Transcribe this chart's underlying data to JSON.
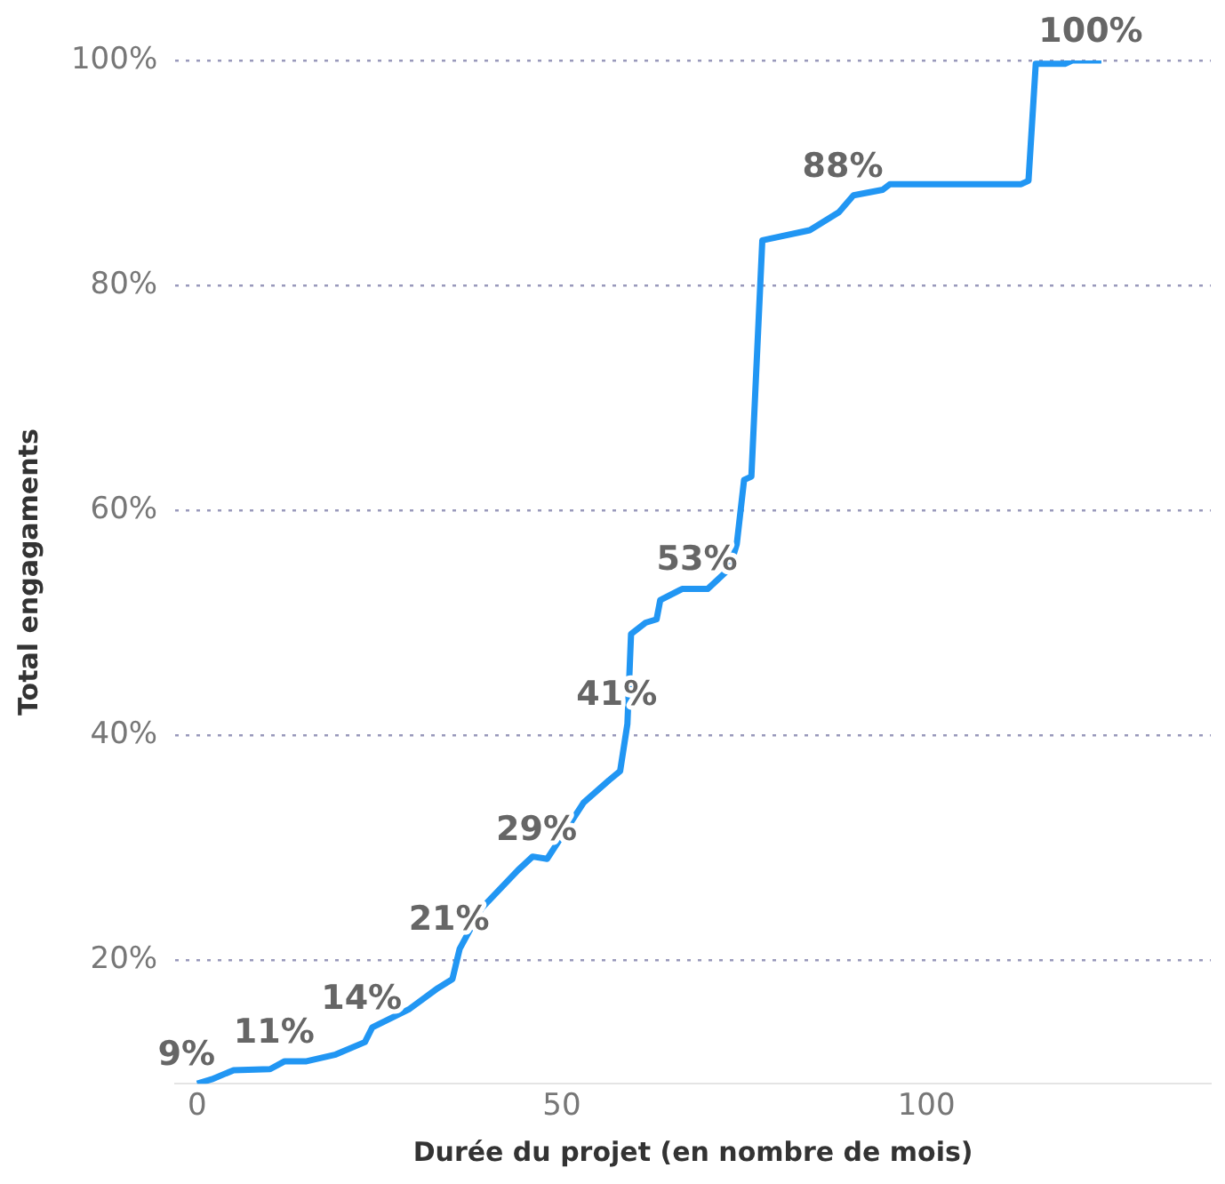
{
  "chart_data": {
    "type": "line",
    "xlabel": "Durée du projet (en nombre de mois)",
    "ylabel": "Total engagaments",
    "x": [
      0,
      2,
      5,
      10,
      12,
      15,
      19,
      23,
      24,
      29,
      33,
      35,
      36,
      39,
      44,
      46,
      48,
      53,
      56.5,
      58,
      59,
      59.5,
      61.5,
      63,
      63.5,
      66.5,
      70,
      73,
      74,
      75,
      76,
      77.5,
      84,
      88,
      90,
      94,
      95,
      113,
      114,
      115,
      119,
      120,
      124
    ],
    "values": [
      9,
      9.4,
      10.2,
      10.3,
      11,
      11,
      11.6,
      12.7,
      14,
      15.6,
      17.5,
      18.3,
      21,
      24.6,
      28,
      29.2,
      29,
      34,
      36,
      36.8,
      41,
      49,
      50,
      50.3,
      52,
      53,
      53,
      54.8,
      57,
      62.7,
      63,
      84,
      84.9,
      86.5,
      88,
      88.5,
      89,
      89,
      89.3,
      99.7,
      99.7,
      100,
      100
    ],
    "value_labels": [
      "9%",
      null,
      null,
      null,
      "11%",
      null,
      null,
      null,
      "14%",
      null,
      null,
      null,
      "21%",
      null,
      null,
      null,
      "29%",
      null,
      null,
      null,
      "41%",
      null,
      null,
      null,
      null,
      null,
      "53%",
      null,
      null,
      null,
      null,
      null,
      null,
      null,
      "88%",
      null,
      null,
      null,
      null,
      null,
      null,
      null,
      "100%"
    ],
    "color": "#2196f3",
    "marker": "none",
    "line_style": "solid",
    "grid": "y",
    "legend": false,
    "xlim": [
      -3,
      139
    ],
    "xticks": [
      0,
      50,
      100
    ],
    "ylim": [
      9,
      100
    ],
    "yticks": [
      {
        "value": 20,
        "label": "20%"
      },
      {
        "value": 40,
        "label": "40%"
      },
      {
        "value": 60,
        "label": "60%"
      },
      {
        "value": 80,
        "label": "80%"
      },
      {
        "value": 100,
        "label": "100%"
      }
    ]
  }
}
